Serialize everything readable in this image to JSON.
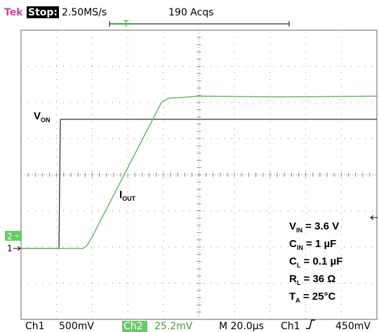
{
  "header": {
    "brand": "Tek",
    "state": "Stop:",
    "rate": "2.50MS/s",
    "acqs": "190 Acqs"
  },
  "trigger_marker": "T",
  "markers": {
    "ch2": "2",
    "ch1": "1"
  },
  "labels": {
    "von": {
      "main": "V",
      "sub": "ON"
    },
    "iout": {
      "main": "I",
      "sub": "OUT"
    }
  },
  "conditions": [
    {
      "main": "V",
      "sub": "IN",
      "rest": " = 3.6 V"
    },
    {
      "main": "C",
      "sub": "IN",
      "rest": " = 1 µF"
    },
    {
      "main": "C",
      "sub": "L",
      "rest": " = 0.1 µF"
    },
    {
      "main": "R",
      "sub": "L",
      "rest": " = 36 Ω"
    },
    {
      "main": "T",
      "sub": "A",
      "rest": " = 25°C"
    }
  ],
  "footer": {
    "ch1": "Ch1",
    "ch1_scale": "500mV",
    "ch2": "Ch2",
    "ch2_scale": "25.2mV",
    "timebase": "M 20.0µs",
    "trigger_source": "Ch1",
    "trigger_level": "450mV"
  }
}
